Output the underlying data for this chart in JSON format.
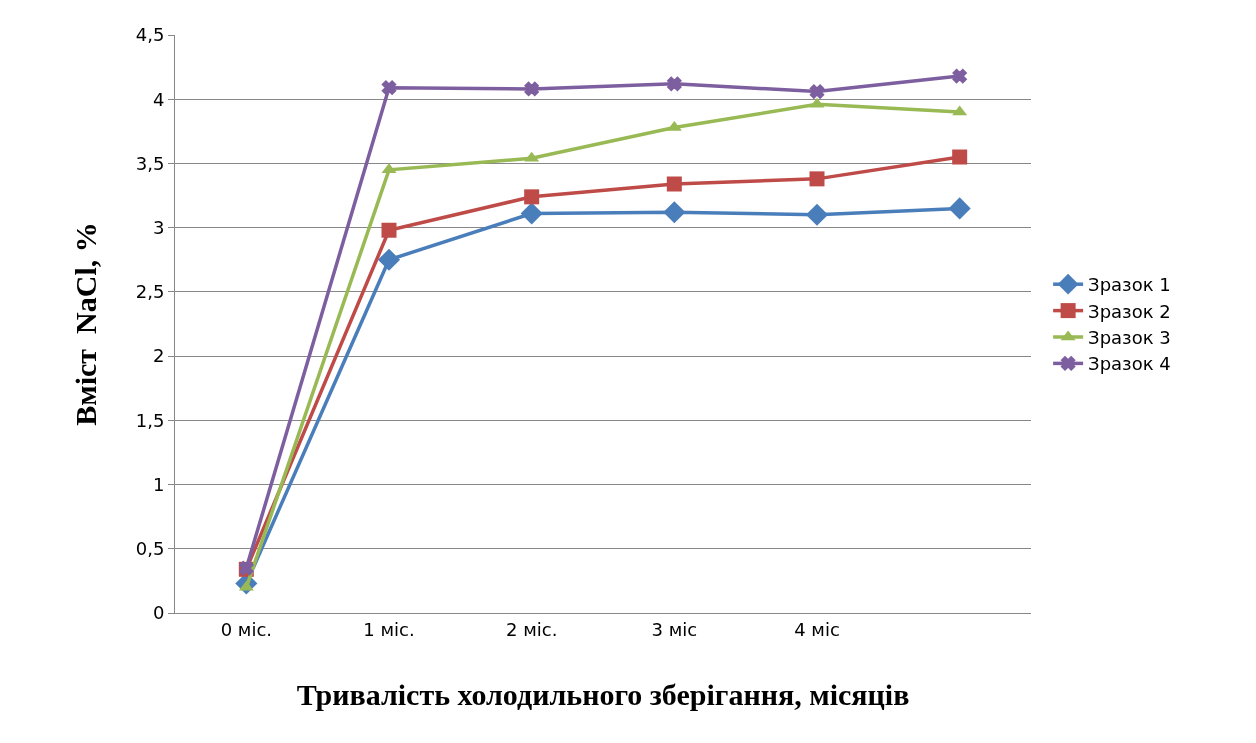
{
  "chart_data": {
    "type": "line",
    "xlabel": "Тривалість холодильного зберігання, місяців",
    "ylabel": "Вміст  NaCl, %",
    "categories": [
      "0 міс.",
      "1 міс.",
      "2 міс.",
      "3 міс",
      "4 міс",
      null
    ],
    "series": [
      {
        "name": "Зразок 1",
        "color": "#4a7ebb",
        "marker": "diamond",
        "values": [
          0.23,
          2.75,
          3.11,
          3.12,
          3.1,
          3.15
        ]
      },
      {
        "name": "Зразок 2",
        "color": "#be4b48",
        "marker": "square",
        "values": [
          0.34,
          2.98,
          3.24,
          3.34,
          3.38,
          3.55
        ]
      },
      {
        "name": "Зразок 3",
        "color": "#98b954",
        "marker": "triangle",
        "values": [
          0.2,
          3.45,
          3.54,
          3.78,
          3.96,
          3.9
        ]
      },
      {
        "name": "Зразок 4",
        "color": "#7d5fa0",
        "marker": "cross",
        "values": [
          0.35,
          4.09,
          4.08,
          4.12,
          4.06,
          4.18
        ]
      }
    ],
    "ylim": [
      0,
      4.5
    ],
    "yticks": [
      0,
      {
        "value": 0.5,
        "label": "0,5"
      },
      1,
      {
        "value": 1.5,
        "label": "1,5"
      },
      2,
      {
        "value": 2.5,
        "label": "2,5"
      },
      3,
      {
        "value": 3.5,
        "label": "3,5"
      },
      4,
      {
        "value": 4.5,
        "label": "4,5"
      }
    ],
    "grid": "y",
    "legend": "right",
    "line_style": "solid"
  }
}
